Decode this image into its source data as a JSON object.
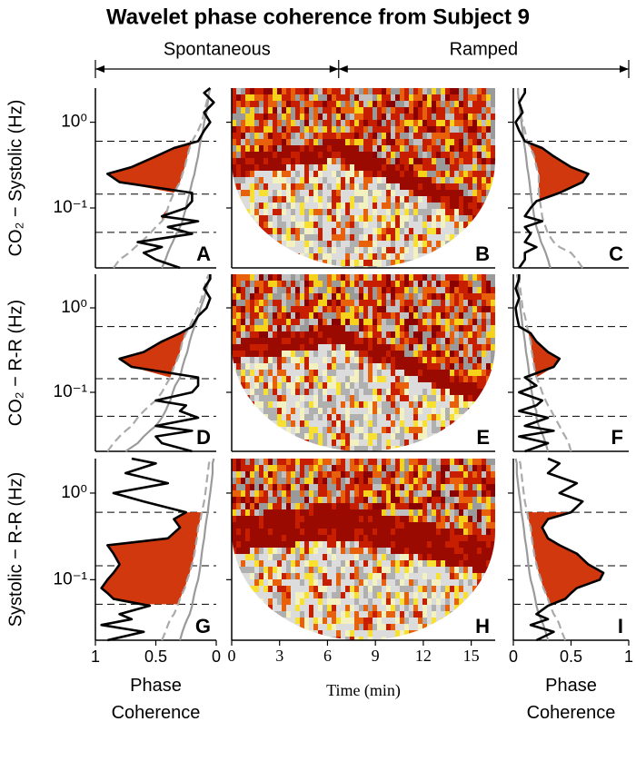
{
  "title": "Wavelet phase coherence from Subject 9",
  "column_labels": [
    "Spontaneous",
    "Ramped"
  ],
  "protocol_switch": 6.7,
  "row_labels": [
    "CO₂ − Systolic (Hz)",
    "CO₂ − R-R (Hz)",
    "Systolic − R-R (Hz)"
  ],
  "chart_data": [
    {
      "type": "line",
      "panel_label": "A",
      "ylog": true,
      "ylim": [
        0.02,
        2.5
      ],
      "yticks": [
        {
          "value": 0.1,
          "label": "10⁻¹"
        },
        {
          "value": 1,
          "label": "10⁰"
        }
      ],
      "xlim": [
        1,
        0
      ],
      "bands": [
        0.052,
        0.145,
        0.6
      ],
      "fill_color": "#d2380e",
      "y": [
        0.02,
        0.025,
        0.03,
        0.035,
        0.04,
        0.05,
        0.06,
        0.07,
        0.08,
        0.1,
        0.12,
        0.15,
        0.2,
        0.25,
        0.3,
        0.4,
        0.5,
        0.6,
        0.8,
        1,
        1.3,
        1.7,
        2.2,
        2.5
      ],
      "series": [
        {
          "color": "#000000",
          "values": [
            0.3,
            0.5,
            0.6,
            0.45,
            0.65,
            0.2,
            0.4,
            0.15,
            0.45,
            0.25,
            0.2,
            0.2,
            0.8,
            0.9,
            0.7,
            0.5,
            0.35,
            0.15,
            0.1,
            0.05,
            0.1,
            0.02,
            0.1,
            0.05
          ]
        },
        {
          "color": "#9a9a9a",
          "values": [
            0.45,
            0.42,
            0.4,
            0.38,
            0.36,
            0.33,
            0.3,
            0.28,
            0.27,
            0.25,
            0.24,
            0.22,
            0.2,
            0.18,
            0.17,
            0.15,
            0.14,
            0.13,
            0.11,
            0.1,
            0.08,
            0.07,
            0.06,
            0.05
          ]
        },
        {
          "color": "#aaaaaa",
          "dashed": true,
          "values": [
            0.85,
            0.8,
            0.72,
            0.67,
            0.62,
            0.55,
            0.5,
            0.45,
            0.42,
            0.4,
            0.38,
            0.35,
            0.3,
            0.28,
            0.26,
            0.24,
            0.22,
            0.2,
            0.15,
            0.12,
            0.1,
            0.08,
            0.06,
            0.05
          ]
        }
      ]
    },
    {
      "type": "heatmap",
      "panel_label": "B",
      "ylog": true,
      "ylim": [
        0.02,
        2.5
      ],
      "yticks": [
        0.1,
        1
      ],
      "xlim": [
        0,
        16.5
      ]
    },
    {
      "type": "line",
      "panel_label": "C",
      "ylog": true,
      "ylim": [
        0.02,
        2.5
      ],
      "yticks": [
        0.1,
        1
      ],
      "xlim": [
        0,
        1
      ],
      "bands": [
        0.052,
        0.145,
        0.6
      ],
      "fill_color": "#d2380e",
      "y": [
        0.02,
        0.025,
        0.03,
        0.035,
        0.04,
        0.05,
        0.06,
        0.07,
        0.08,
        0.1,
        0.12,
        0.15,
        0.2,
        0.25,
        0.3,
        0.4,
        0.5,
        0.6,
        0.8,
        1,
        1.3,
        1.7,
        2.2,
        2.5
      ],
      "series": [
        {
          "color": "#000000",
          "values": [
            0.05,
            0.1,
            0.1,
            0.2,
            0.1,
            0.15,
            0.1,
            0.25,
            0.1,
            0.15,
            0.2,
            0.4,
            0.6,
            0.65,
            0.5,
            0.35,
            0.25,
            0.1,
            0.05,
            0.02,
            0.08,
            0.05,
            0.1,
            0.1
          ]
        },
        {
          "color": "#9a9a9a",
          "values": [
            0.32,
            0.3,
            0.28,
            0.26,
            0.24,
            0.22,
            0.2,
            0.19,
            0.18,
            0.17,
            0.16,
            0.15,
            0.14,
            0.13,
            0.12,
            0.11,
            0.1,
            0.09,
            0.08,
            0.07,
            0.06,
            0.05,
            0.04,
            0.04
          ]
        },
        {
          "color": "#aaaaaa",
          "dashed": true,
          "values": [
            0.6,
            0.55,
            0.5,
            0.4,
            0.35,
            0.3,
            0.28,
            0.26,
            0.25,
            0.24,
            0.23,
            0.22,
            0.22,
            0.22,
            0.2,
            0.18,
            0.15,
            0.12,
            0.1,
            0.08,
            0.06,
            0.05,
            0.04,
            0.04
          ]
        }
      ]
    },
    {
      "type": "line",
      "panel_label": "D",
      "ylog": true,
      "ylim": [
        0.02,
        2.5
      ],
      "yticks": [
        {
          "value": 0.1,
          "label": "10⁻¹"
        },
        {
          "value": 1,
          "label": "10⁰"
        }
      ],
      "xlim": [
        1,
        0
      ],
      "bands": [
        0.052,
        0.145,
        0.6
      ],
      "fill_color": "#d2380e",
      "y": [
        0.02,
        0.025,
        0.03,
        0.035,
        0.04,
        0.05,
        0.06,
        0.07,
        0.08,
        0.1,
        0.12,
        0.15,
        0.2,
        0.25,
        0.3,
        0.4,
        0.5,
        0.6,
        0.8,
        1,
        1.3,
        1.7,
        2.2,
        2.5
      ],
      "series": [
        {
          "color": "#000000",
          "values": [
            0.2,
            0.45,
            0.5,
            0.2,
            0.5,
            0.15,
            0.3,
            0.25,
            0.5,
            0.2,
            0.15,
            0.15,
            0.7,
            0.8,
            0.6,
            0.45,
            0.3,
            0.2,
            0.15,
            0.08,
            0.05,
            0.1,
            0.05,
            0.05
          ]
        },
        {
          "color": "#9a9a9a",
          "values": [
            0.75,
            0.65,
            0.6,
            0.55,
            0.5,
            0.45,
            0.42,
            0.4,
            0.38,
            0.36,
            0.34,
            0.3,
            0.28,
            0.26,
            0.24,
            0.22,
            0.2,
            0.18,
            0.15,
            0.13,
            0.1,
            0.08,
            0.06,
            0.05
          ]
        },
        {
          "color": "#aaaaaa",
          "dashed": true,
          "values": [
            0.9,
            0.85,
            0.8,
            0.75,
            0.7,
            0.65,
            0.6,
            0.55,
            0.5,
            0.45,
            0.42,
            0.38,
            0.35,
            0.32,
            0.3,
            0.28,
            0.25,
            0.22,
            0.18,
            0.15,
            0.12,
            0.1,
            0.08,
            0.06
          ]
        }
      ]
    },
    {
      "type": "heatmap",
      "panel_label": "E",
      "ylog": true,
      "ylim": [
        0.02,
        2.5
      ],
      "yticks": [
        0.1,
        1
      ],
      "xlim": [
        0,
        16.5
      ]
    },
    {
      "type": "line",
      "panel_label": "F",
      "ylog": true,
      "ylim": [
        0.02,
        2.5
      ],
      "yticks": [
        0.1,
        1
      ],
      "xlim": [
        0,
        1
      ],
      "bands": [
        0.052,
        0.145,
        0.6
      ],
      "fill_color": "#d2380e",
      "y": [
        0.02,
        0.025,
        0.03,
        0.035,
        0.04,
        0.05,
        0.06,
        0.07,
        0.08,
        0.1,
        0.12,
        0.15,
        0.2,
        0.25,
        0.3,
        0.4,
        0.5,
        0.6,
        0.8,
        1,
        1.3,
        1.7,
        2.2,
        2.5
      ],
      "series": [
        {
          "color": "#000000",
          "values": [
            0.1,
            0.3,
            0.05,
            0.35,
            0.1,
            0.3,
            0.05,
            0.2,
            0.25,
            0.05,
            0.2,
            0.1,
            0.35,
            0.4,
            0.3,
            0.2,
            0.15,
            0.05,
            0.03,
            0.02,
            0.05,
            0.02,
            0.05,
            0.05
          ]
        },
        {
          "color": "#9a9a9a",
          "values": [
            0.3,
            0.28,
            0.26,
            0.24,
            0.22,
            0.2,
            0.2,
            0.18,
            0.17,
            0.16,
            0.15,
            0.14,
            0.13,
            0.12,
            0.11,
            0.1,
            0.09,
            0.08,
            0.07,
            0.06,
            0.05,
            0.04,
            0.04,
            0.03
          ]
        },
        {
          "color": "#aaaaaa",
          "dashed": true,
          "values": [
            0.5,
            0.48,
            0.45,
            0.42,
            0.4,
            0.36,
            0.33,
            0.3,
            0.28,
            0.25,
            0.23,
            0.2,
            0.18,
            0.17,
            0.16,
            0.15,
            0.13,
            0.12,
            0.1,
            0.08,
            0.07,
            0.06,
            0.05,
            0.04
          ]
        }
      ]
    },
    {
      "type": "line",
      "panel_label": "G",
      "ylog": true,
      "ylim": [
        0.02,
        2.5
      ],
      "yticks": [
        {
          "value": 0.1,
          "label": "10⁻¹"
        },
        {
          "value": 1,
          "label": "10⁰"
        }
      ],
      "xlim": [
        1,
        0
      ],
      "xticks": [
        1,
        0.5,
        0
      ],
      "xlabel": "Phase Coherence",
      "bands": [
        0.052,
        0.145,
        0.6
      ],
      "fill_color": "#d2380e",
      "y": [
        0.02,
        0.025,
        0.03,
        0.035,
        0.04,
        0.05,
        0.06,
        0.07,
        0.08,
        0.1,
        0.12,
        0.15,
        0.2,
        0.25,
        0.3,
        0.4,
        0.5,
        0.6,
        0.8,
        1,
        1.3,
        1.7,
        2.2,
        2.5
      ],
      "series": [
        {
          "color": "#000000",
          "values": [
            0.9,
            0.6,
            0.95,
            0.7,
            0.8,
            0.55,
            0.85,
            0.9,
            0.95,
            0.9,
            0.85,
            0.8,
            0.85,
            0.9,
            0.4,
            0.3,
            0.35,
            0.25,
            0.6,
            0.85,
            0.4,
            0.75,
            0.5,
            0.7
          ]
        },
        {
          "color": "#9a9a9a",
          "values": [
            0.3,
            0.28,
            0.26,
            0.24,
            0.22,
            0.2,
            0.19,
            0.18,
            0.17,
            0.15,
            0.14,
            0.13,
            0.12,
            0.11,
            0.1,
            0.09,
            0.08,
            0.07,
            0.06,
            0.05,
            0.04,
            0.03,
            0.03,
            0.02
          ]
        },
        {
          "color": "#aaaaaa",
          "dashed": true,
          "values": [
            0.45,
            0.42,
            0.4,
            0.38,
            0.35,
            0.32,
            0.3,
            0.28,
            0.26,
            0.24,
            0.22,
            0.2,
            0.18,
            0.17,
            0.16,
            0.15,
            0.13,
            0.12,
            0.1,
            0.09,
            0.08,
            0.07,
            0.06,
            0.05
          ]
        }
      ]
    },
    {
      "type": "heatmap",
      "panel_label": "H",
      "ylog": true,
      "ylim": [
        0.02,
        2.5
      ],
      "yticks": [
        0.1,
        1
      ],
      "xlim": [
        0,
        16.5
      ],
      "xticks": [
        0,
        3,
        6,
        9,
        12,
        15
      ],
      "xlabel": "Time (min)"
    },
    {
      "type": "line",
      "panel_label": "I",
      "ylog": true,
      "ylim": [
        0.02,
        2.5
      ],
      "yticks": [
        0.1,
        1
      ],
      "xlim": [
        0,
        1
      ],
      "xticks": [
        0,
        0.5,
        1
      ],
      "xlabel": "Phase Coherence",
      "bands": [
        0.052,
        0.145,
        0.6
      ],
      "fill_color": "#d2380e",
      "y": [
        0.02,
        0.025,
        0.03,
        0.035,
        0.04,
        0.05,
        0.06,
        0.07,
        0.08,
        0.1,
        0.12,
        0.15,
        0.2,
        0.25,
        0.3,
        0.4,
        0.5,
        0.6,
        0.8,
        1,
        1.3,
        1.7,
        2.2,
        2.5
      ],
      "series": [
        {
          "color": "#000000",
          "values": [
            0.2,
            0.35,
            0.15,
            0.3,
            0.2,
            0.3,
            0.45,
            0.5,
            0.55,
            0.75,
            0.78,
            0.65,
            0.55,
            0.4,
            0.3,
            0.25,
            0.3,
            0.5,
            0.6,
            0.4,
            0.55,
            0.3,
            0.4,
            0.3
          ]
        },
        {
          "color": "#9a9a9a",
          "values": [
            0.3,
            0.28,
            0.26,
            0.24,
            0.22,
            0.2,
            0.19,
            0.18,
            0.17,
            0.15,
            0.14,
            0.13,
            0.12,
            0.11,
            0.1,
            0.09,
            0.08,
            0.07,
            0.06,
            0.05,
            0.04,
            0.03,
            0.03,
            0.02
          ]
        },
        {
          "color": "#aaaaaa",
          "dashed": true,
          "values": [
            0.45,
            0.42,
            0.4,
            0.38,
            0.35,
            0.32,
            0.3,
            0.28,
            0.26,
            0.24,
            0.22,
            0.2,
            0.18,
            0.17,
            0.16,
            0.15,
            0.13,
            0.12,
            0.1,
            0.09,
            0.08,
            0.07,
            0.06,
            0.05
          ]
        }
      ]
    }
  ]
}
